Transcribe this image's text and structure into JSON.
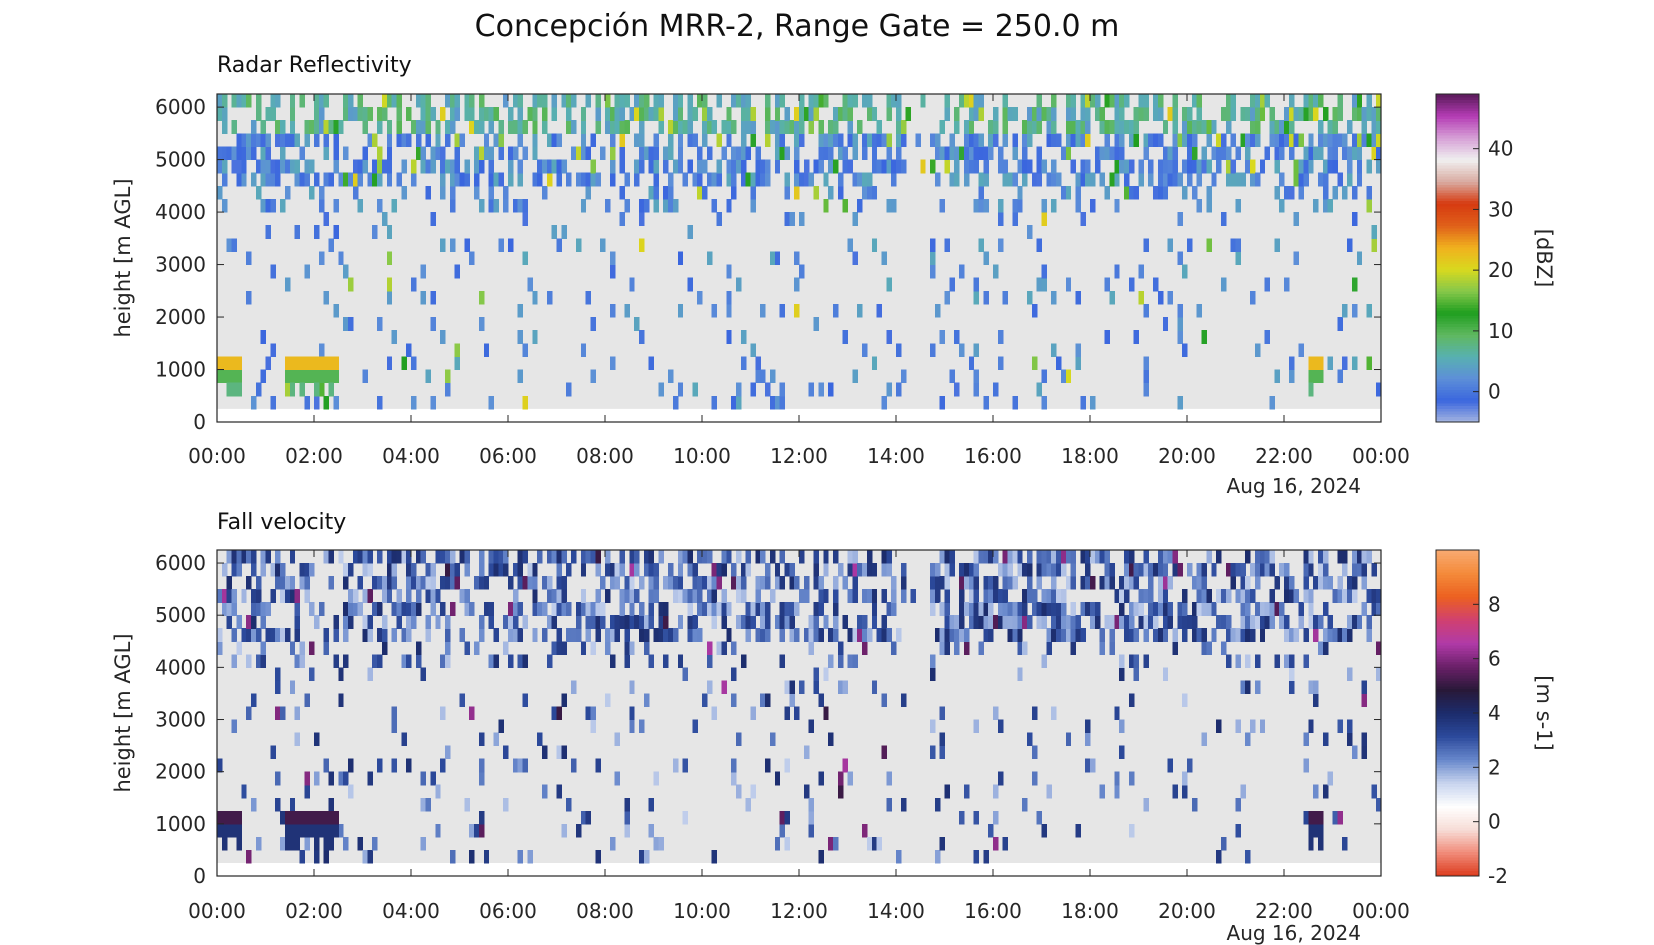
{
  "title": "Concepción MRR-2, Range Gate = 250.0 m",
  "colors": {
    "missing": "#e6e6e6",
    "axis": "#262626"
  },
  "chart_data": [
    {
      "type": "heatmap",
      "title": "Radar Reflectivity",
      "ylabel": "height [m AGL]",
      "ylim": [
        0,
        6250
      ],
      "yticks": [
        "0",
        "1000",
        "2000",
        "3000",
        "4000",
        "5000",
        "6000"
      ],
      "xticks": [
        "00:00",
        "02:00",
        "04:00",
        "06:00",
        "08:00",
        "10:00",
        "12:00",
        "14:00",
        "16:00",
        "18:00",
        "20:00",
        "22:00",
        "00:00"
      ],
      "xdate": "Aug 16, 2024",
      "x_range_hours": [
        0,
        24
      ],
      "data_height_range": [
        250,
        6250
      ],
      "colorbar": {
        "label": "[dBZ]",
        "ticks": [
          "0",
          "10",
          "20",
          "30",
          "40"
        ],
        "clim": [
          -5,
          49
        ],
        "colormap": [
          "#a6b6e0",
          "#3a66de",
          "#5d8fd8",
          "#58b0b0",
          "#5fb85f",
          "#1f9e1f",
          "#86c84a",
          "#d9d91e",
          "#f0b01e",
          "#e0601a",
          "#d63a10",
          "#d9aaa0",
          "#f0f0f0",
          "#d6a0d6",
          "#b53cb5",
          "#5a1a5a"
        ]
      }
    },
    {
      "type": "heatmap",
      "title": "Fall velocity",
      "ylabel": "height [m AGL]",
      "ylim": [
        0,
        6250
      ],
      "yticks": [
        "0",
        "1000",
        "2000",
        "3000",
        "4000",
        "5000",
        "6000"
      ],
      "xticks": [
        "00:00",
        "02:00",
        "04:00",
        "06:00",
        "08:00",
        "10:00",
        "12:00",
        "14:00",
        "16:00",
        "18:00",
        "20:00",
        "22:00",
        "00:00"
      ],
      "xdate": "Aug 16, 2024",
      "x_range_hours": [
        0,
        24
      ],
      "data_height_range": [
        250,
        6250
      ],
      "colorbar": {
        "label": "[m s-1]",
        "ticks": [
          "-2",
          "0",
          "2",
          "4",
          "6",
          "8"
        ],
        "clim": [
          -2,
          10
        ],
        "colormap": [
          "#dc3a1c",
          "#f08a78",
          "#f7dcd6",
          "#ffffff",
          "#c8d4ee",
          "#6888cc",
          "#2c4a9c",
          "#1c2c6c",
          "#281838",
          "#6a2068",
          "#b03aa8",
          "#d04070",
          "#ec6020",
          "#f48a3a",
          "#f8aa70"
        ]
      }
    }
  ]
}
